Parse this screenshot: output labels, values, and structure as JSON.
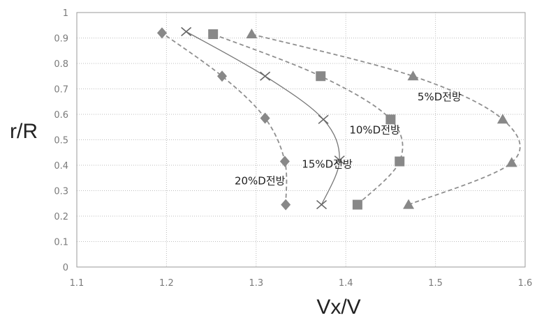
{
  "chart_data": {
    "type": "line",
    "xlabel": "Vx/V",
    "ylabel": "r/R",
    "xlim": [
      1.1,
      1.6
    ],
    "ylim": [
      0,
      1
    ],
    "xticks": [
      "1.1",
      "1.2",
      "1.3",
      "1.4",
      "1.5",
      "1.6"
    ],
    "yticks": [
      "0",
      "0.1",
      "0.2",
      "0.3",
      "0.4",
      "0.5",
      "0.6",
      "0.7",
      "0.8",
      "0.9",
      "1"
    ],
    "grid": true,
    "series": [
      {
        "name": "5%D전방",
        "marker": "triangle",
        "line": "dashed",
        "color": "#888888",
        "points": [
          [
            1.47,
            0.245
          ],
          [
            1.585,
            0.41
          ],
          [
            1.575,
            0.58
          ],
          [
            1.475,
            0.75
          ],
          [
            1.295,
            0.915
          ]
        ]
      },
      {
        "name": "10%D전방",
        "marker": "square",
        "line": "dashed",
        "color": "#888888",
        "points": [
          [
            1.413,
            0.245
          ],
          [
            1.46,
            0.415
          ],
          [
            1.45,
            0.58
          ],
          [
            1.372,
            0.75
          ],
          [
            1.252,
            0.915
          ]
        ]
      },
      {
        "name": "15%D전방",
        "marker": "cross",
        "line": "solid",
        "color": "#888888",
        "points": [
          [
            1.373,
            0.245
          ],
          [
            1.393,
            0.42
          ],
          [
            1.375,
            0.58
          ],
          [
            1.31,
            0.75
          ],
          [
            1.222,
            0.925
          ]
        ]
      },
      {
        "name": "20%D전방",
        "marker": "diamond",
        "line": "dashed",
        "color": "#888888",
        "points": [
          [
            1.333,
            0.245
          ],
          [
            1.332,
            0.415
          ],
          [
            1.31,
            0.585
          ],
          [
            1.262,
            0.75
          ],
          [
            1.195,
            0.92
          ]
        ]
      }
    ],
    "annotations": [
      {
        "series": 0,
        "text": "5%D전방",
        "x": 1.48,
        "y": 0.655
      },
      {
        "series": 1,
        "text": "10%D전방",
        "x": 1.404,
        "y": 0.525
      },
      {
        "series": 2,
        "text": "15%D전방",
        "x": 1.351,
        "y": 0.39
      },
      {
        "series": 3,
        "text": "20%D전방",
        "x": 1.276,
        "y": 0.325
      }
    ]
  }
}
